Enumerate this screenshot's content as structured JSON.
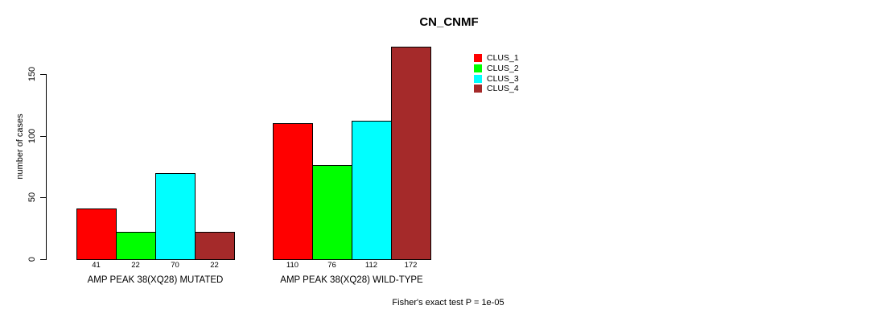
{
  "chart_data": {
    "type": "bar",
    "title": "CN_CNMF",
    "ylabel": "number of cases",
    "xlabel": "",
    "ylim": [
      0,
      150
    ],
    "yticks": [
      0,
      50,
      100,
      150
    ],
    "grid": false,
    "legend_position": "top-right-inside",
    "series": [
      {
        "name": "CLUS_1",
        "color": "#FF0000",
        "values": [
          41,
          110
        ]
      },
      {
        "name": "CLUS_2",
        "color": "#00FF00",
        "values": [
          22,
          76
        ]
      },
      {
        "name": "CLUS_3",
        "color": "#00FFFF",
        "values": [
          70,
          112
        ]
      },
      {
        "name": "CLUS_4",
        "color": "#A52A2A",
        "values": [
          22,
          172
        ]
      }
    ],
    "groups": [
      {
        "label": "AMP PEAK 38(XQ28) MUTATED",
        "values": [
          41,
          22,
          70,
          22
        ]
      },
      {
        "label": "AMP PEAK 38(XQ28) WILD-TYPE",
        "values": [
          110,
          76,
          112,
          172
        ]
      }
    ],
    "bar_value_labels": [
      "41",
      "22",
      "70",
      "22",
      "110",
      "76",
      "112",
      "172"
    ],
    "footnote": "Fisher's exact test P = 1e-05"
  }
}
